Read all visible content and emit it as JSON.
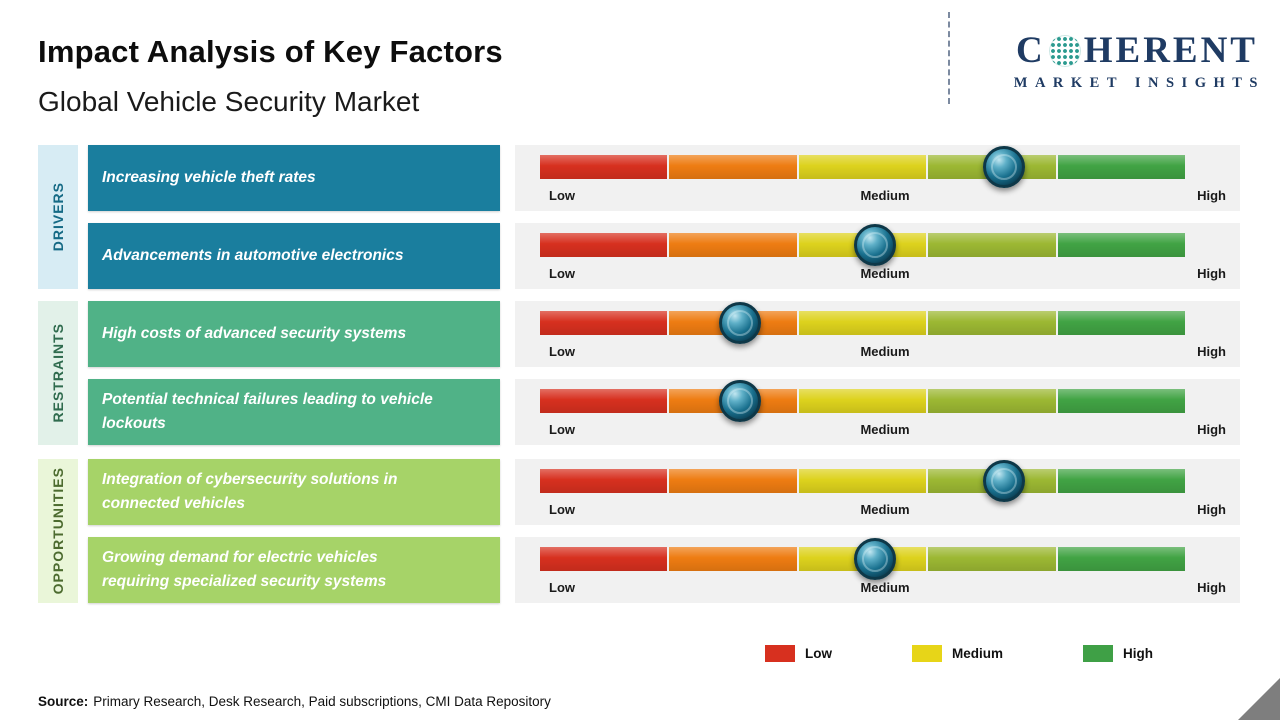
{
  "header": {
    "title": "Impact Analysis of Key Factors",
    "subtitle": "Global Vehicle Security Market",
    "logo": {
      "prefix": "C",
      "suffix": "HERENT",
      "tagline": "MARKET INSIGHTS"
    }
  },
  "groups": [
    {
      "label": "DRIVERS"
    },
    {
      "label": "RESTRAINTS"
    },
    {
      "label": "OPPORTUNITIES"
    }
  ],
  "scale": {
    "low": "Low",
    "medium": "Medium",
    "high": "High"
  },
  "rows": [
    {
      "group": "DRIVERS",
      "factor": "Increasing vehicle theft rates",
      "marker_pct": 72
    },
    {
      "group": "DRIVERS",
      "factor": "Advancements in automotive electronics",
      "marker_pct": 52
    },
    {
      "group": "RESTRAINTS",
      "factor": "High costs of advanced security systems",
      "marker_pct": 31
    },
    {
      "group": "RESTRAINTS",
      "factor": "Potential technical failures leading to vehicle lockouts",
      "marker_pct": 31
    },
    {
      "group": "OPPORTUNITIES",
      "factor": "Integration of cybersecurity solutions in connected vehicles",
      "marker_pct": 72
    },
    {
      "group": "OPPORTUNITIES",
      "factor": "Growing demand for electric vehicles requiring specialized security systems",
      "marker_pct": 52
    }
  ],
  "legend": [
    {
      "label": "Low",
      "color": "#d7301f"
    },
    {
      "label": "Medium",
      "color": "#e7d518"
    },
    {
      "label": "High",
      "color": "#3fa046"
    }
  ],
  "source": {
    "label": "Source:",
    "text": "Primary Research, Desk Research, Paid subscriptions, CMI Data Repository"
  },
  "colors": {
    "scale_segments": [
      "#d7301f",
      "#ee7c12",
      "#ddd21d",
      "#9cb833",
      "#41a344"
    ],
    "driver_box": "#1a7e9e",
    "restraint_box": "#50b287",
    "opportunity_box": "#a6d368",
    "marker": "#0c445a",
    "logo_navy": "#1f3b63"
  },
  "chart_data": {
    "type": "scatter",
    "title": "Impact Analysis of Key Factors",
    "subtitle": "Global Vehicle Security Market",
    "x_axis": {
      "labels": [
        "Low",
        "Medium",
        "High"
      ],
      "range": [
        0,
        100
      ]
    },
    "categories": [
      "Increasing vehicle theft rates",
      "Advancements in automotive electronics",
      "High costs of advanced security systems",
      "Potential technical failures leading to vehicle lockouts",
      "Integration of cybersecurity solutions in connected vehicles",
      "Growing demand for electric vehicles requiring specialized security systems"
    ],
    "series": [
      {
        "name": "Drivers",
        "points": [
          {
            "category": "Increasing vehicle theft rates",
            "impact": 72
          },
          {
            "category": "Advancements in automotive electronics",
            "impact": 52
          }
        ]
      },
      {
        "name": "Restraints",
        "points": [
          {
            "category": "High costs of advanced security systems",
            "impact": 31
          },
          {
            "category": "Potential technical failures leading to vehicle lockouts",
            "impact": 31
          }
        ]
      },
      {
        "name": "Opportunities",
        "points": [
          {
            "category": "Integration of cybersecurity solutions in connected vehicles",
            "impact": 72
          },
          {
            "category": "Growing demand for electric vehicles requiring specialized security systems",
            "impact": 52
          }
        ]
      }
    ],
    "legend": [
      "Low",
      "Medium",
      "High"
    ],
    "legend_position": "bottom-right",
    "grid": false
  }
}
